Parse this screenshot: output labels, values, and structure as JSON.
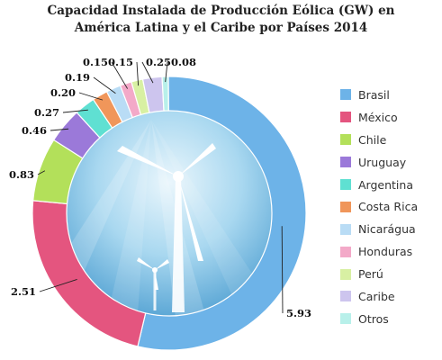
{
  "chart_data": {
    "type": "pie",
    "variant": "donut",
    "title": "Capacidad Instalada de Producción Eólica (GW) en\nAmérica Latina y el Caribe por Países 2014",
    "legend_position": "right",
    "series": [
      {
        "name": "Brasil",
        "value": 5.93,
        "label": "5.93",
        "color": "#6db3e8"
      },
      {
        "name": "México",
        "value": 2.51,
        "label": "2.51",
        "color": "#e4557f"
      },
      {
        "name": "Chile",
        "value": 0.83,
        "label": "0.83",
        "color": "#b3e05a"
      },
      {
        "name": "Uruguay",
        "value": 0.46,
        "label": "0.46",
        "color": "#9b79d9"
      },
      {
        "name": "Argentina",
        "value": 0.27,
        "label": "0.27",
        "color": "#5fe0d2"
      },
      {
        "name": "Costa Rica",
        "value": 0.2,
        "label": "0.20",
        "color": "#f0965a"
      },
      {
        "name": "Nicarágua",
        "value": 0.19,
        "label": "0.19",
        "color": "#b9dcf5"
      },
      {
        "name": "Honduras",
        "value": 0.15,
        "label": "0.15",
        "color": "#f3a9c8"
      },
      {
        "name": "Perú",
        "value": 0.15,
        "label": "0.15",
        "color": "#d8f0a3"
      },
      {
        "name": "Caribe",
        "value": 0.25,
        "label": "0.25",
        "color": "#cdc5ee"
      },
      {
        "name": "Otros",
        "value": 0.08,
        "label": "0.08",
        "color": "#b8f0ea"
      }
    ]
  }
}
